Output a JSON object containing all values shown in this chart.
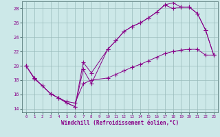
{
  "xlabel": "Windchill (Refroidissement éolien,°C)",
  "bg_color": "#cce8e8",
  "line_color": "#880088",
  "grid_color": "#99bbbb",
  "xlim": [
    -0.5,
    23.5
  ],
  "ylim": [
    13.5,
    29.0
  ],
  "yticks": [
    14,
    16,
    18,
    20,
    22,
    24,
    26,
    28
  ],
  "xticks": [
    0,
    1,
    2,
    3,
    4,
    5,
    6,
    7,
    8,
    9,
    10,
    11,
    12,
    13,
    14,
    15,
    16,
    17,
    18,
    19,
    20,
    21,
    22,
    23
  ],
  "line1_x": [
    0,
    1,
    2,
    3,
    4,
    5,
    6,
    7,
    8,
    10,
    11,
    12,
    13,
    14,
    15,
    16,
    17,
    18,
    19,
    20,
    21,
    22,
    23
  ],
  "line1_y": [
    20,
    18.3,
    17.2,
    16.1,
    15.5,
    14.8,
    14.3,
    20.5,
    19.0,
    22.3,
    23.5,
    24.8,
    25.5,
    26.0,
    26.7,
    27.5,
    28.5,
    28.8,
    28.2,
    28.2,
    27.3,
    25.0,
    21.5
  ],
  "line2_x": [
    0,
    1,
    2,
    3,
    4,
    5,
    6,
    7,
    8,
    10,
    11,
    12,
    13,
    14,
    15,
    16,
    17,
    18,
    19,
    20,
    21,
    22,
    23
  ],
  "line2_y": [
    20,
    18.3,
    17.2,
    16.1,
    15.5,
    14.8,
    14.3,
    19.5,
    17.5,
    22.3,
    23.5,
    24.8,
    25.5,
    26.0,
    26.7,
    27.5,
    28.5,
    28.0,
    28.2,
    28.2,
    27.3,
    25.0,
    21.5
  ],
  "line3_x": [
    0,
    1,
    2,
    3,
    4,
    5,
    6,
    7,
    8,
    10,
    11,
    12,
    13,
    14,
    15,
    16,
    17,
    18,
    19,
    20,
    21,
    22,
    23
  ],
  "line3_y": [
    20.0,
    18.2,
    17.2,
    16.1,
    15.5,
    15.0,
    14.8,
    17.5,
    18.0,
    18.3,
    18.8,
    19.3,
    19.8,
    20.2,
    20.7,
    21.2,
    21.7,
    22.0,
    22.2,
    22.3,
    22.3,
    21.5,
    21.5
  ]
}
